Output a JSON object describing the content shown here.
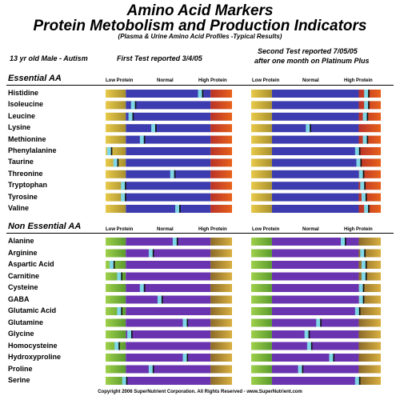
{
  "title_line1": "Amino Acid Markers",
  "title_line2": "Protein Metobolism and Production Indicators",
  "subtitle": "(Plasma & Urine Amino Acid Profiles -Typical Results)",
  "patient": "13 yr old Male - Autism",
  "first_test": "First Test  reported 3/4/05",
  "second_test_line1": "Second Test reported 7/05/05",
  "second_test_line2": "after one month on Platinum Plus",
  "scale_labels": {
    "low": "Low Protein",
    "normal": "Normal",
    "high": "High Protein"
  },
  "footer": "Copyright 2006 SuperNutrient Corporation. All Rights Reserved - www.SuperNutrient.com",
  "colors": {
    "essential_low": "#c9a43a",
    "essential_normal": "#3c3cb0",
    "essential_high": "#d44a1e",
    "nonessential_low": "#7ab83a",
    "nonessential_normal": "#6a33b0",
    "nonessential_high": "#c9a43a",
    "marker": "#7fd6e6"
  },
  "chart_data": [
    {
      "type": "bar",
      "section": "Essential AA",
      "scale_note": "marker position on a 0-100 scale across the Low/Normal/High band",
      "categories": [
        "Histidine",
        "Isoleucine",
        "Leucine",
        "Lysine",
        "Methionine",
        "Phenylalanine",
        "Taurine",
        "Threonine",
        "Tryptophan",
        "Tyrosine",
        "Valine"
      ],
      "series": [
        {
          "name": "First Test  reported 3/4/05",
          "values": [
            75,
            22,
            20,
            38,
            29,
            3,
            8,
            53,
            14,
            14,
            57
          ]
        },
        {
          "name": "Second Test reported 7/05/05",
          "values": [
            89,
            89,
            88,
            44,
            88,
            82,
            83,
            85,
            86,
            87,
            89
          ]
        }
      ]
    },
    {
      "type": "bar",
      "section": "Non Essential AA",
      "categories": [
        "Alanine",
        "Arginine",
        "Aspartic Acid",
        "Carnitine",
        "Cysteine",
        "GABA",
        "Glutamic Acid",
        "Glutamine",
        "Glycine",
        "Homocysteine",
        "Hydroxyproline",
        "Proline",
        "Serine"
      ],
      "series": [
        {
          "name": "First Test  reported 3/4/05",
          "values": [
            55,
            36,
            5,
            11,
            29,
            43,
            11,
            63,
            19,
            9,
            63,
            36,
            15
          ]
        },
        {
          "name": "Second Test reported 7/05/05",
          "values": [
            71,
            86,
            87,
            87,
            85,
            85,
            82,
            52,
            43,
            45,
            62,
            38,
            82
          ]
        }
      ]
    }
  ]
}
